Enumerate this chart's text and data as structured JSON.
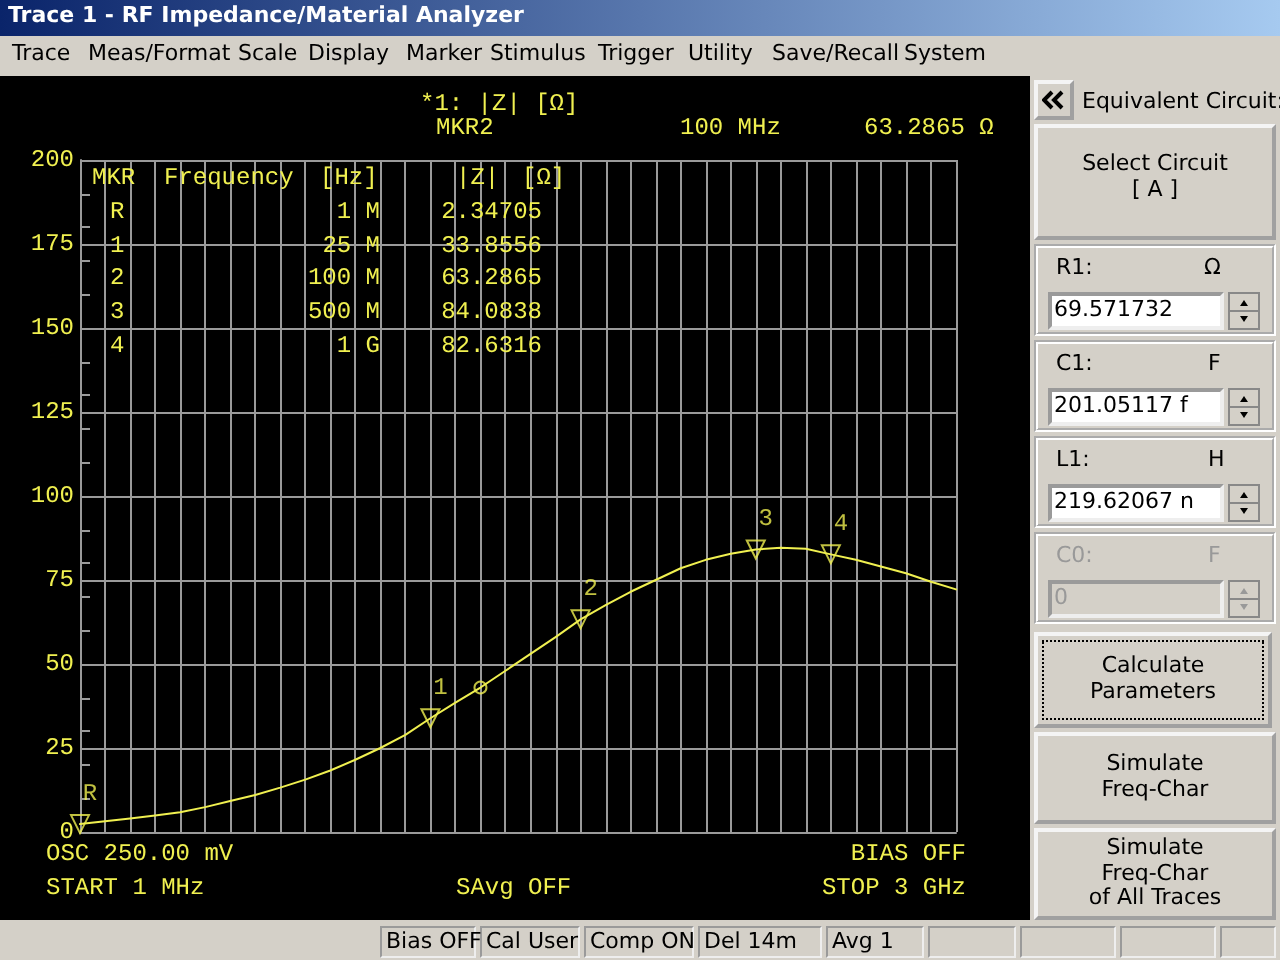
{
  "chart_data": {
    "type": "line",
    "title": "*1: |Z| [Ω]",
    "categories": [
      null,
      null,
      null,
      null,
      null,
      null,
      null,
      null,
      null,
      null,
      null,
      null,
      null,
      null,
      null,
      null,
      null,
      null,
      null,
      null,
      null,
      null,
      null,
      null,
      null,
      null,
      null,
      null,
      null,
      null,
      null,
      null,
      null,
      null,
      null,
      null
    ],
    "ylim": [
      0,
      200
    ],
    "yticks": [
      0,
      25,
      50,
      75,
      100,
      125,
      150,
      175,
      200
    ],
    "grid": true,
    "tick_labels": "y",
    "series": [
      {
        "color": "#f0f050",
        "marker": "none",
        "line_style": "solid",
        "values": [
          2.35,
          3.2,
          4,
          4.9,
          5.9,
          7.4,
          9.2,
          11,
          13.2,
          15.6,
          18.3,
          21.5,
          25,
          28.9,
          33.86,
          38.5,
          43,
          48,
          53,
          58,
          63.29,
          67.5,
          71.5,
          75,
          78.5,
          81,
          82.8,
          84.08,
          84.6,
          84.3,
          82.63,
          81,
          79,
          77,
          74.5,
          72.2
        ]
      },
      {
        "type": "scatter",
        "color": "#f0f050",
        "marker": "triangle",
        "values": [
          2.34705,
          null,
          null,
          null,
          null,
          null,
          null,
          null,
          null,
          null,
          null,
          null,
          null,
          null,
          33.8556,
          null,
          null,
          null,
          null,
          null,
          63.2865,
          null,
          null,
          null,
          null,
          null,
          null,
          84.0838,
          null,
          null,
          82.6316,
          null,
          null,
          null,
          null,
          null
        ]
      },
      {
        "type": "scatter",
        "color": "#f0f050",
        "marker": "circle",
        "values": [
          null,
          null,
          null,
          null,
          null,
          null,
          null,
          null,
          null,
          null,
          null,
          null,
          null,
          null,
          null,
          null,
          43,
          null,
          null,
          null,
          null,
          null,
          null,
          null,
          null,
          null,
          null,
          null,
          null,
          null,
          null,
          null,
          null,
          null,
          null,
          null
        ]
      }
    ],
    "annotations": [
      "Trace 1 - RF Impedance/Material Analyzer",
      "Trace",
      "Meas/Format",
      "Scale",
      "Display",
      "Marker",
      "Stimulus",
      "Trigger",
      "Utility",
      "Save/Recall",
      "System",
      "MKR2",
      "100 MHz",
      "63.2865 Ω",
      "MKR",
      "Frequency",
      "[Hz]",
      "|Z|",
      "[Ω]",
      "R",
      "1 M",
      "2.34705",
      "1",
      "25 M",
      "33.8556",
      "2",
      "100 M",
      "63.2865",
      "3",
      "500 M",
      "84.0838",
      "4",
      "1 G",
      "82.6316",
      "OSC 250.00 mV",
      "BIAS OFF",
      "START 1 MHz",
      "SAvg OFF",
      "STOP 3 GHz",
      "Equivalent Circuit:",
      "Select Circuit\n[ A ]",
      "R1:",
      "Ω",
      "69.571732",
      "C1:",
      "F",
      "201.05117 f",
      "L1:",
      "H",
      "219.62067 n",
      "C0:",
      "F",
      "0",
      "Calculate\nParameters",
      "Simulate\nFreq-Char",
      "Simulate\nFreq-Char\nof All Traces",
      "Bias OFF",
      "Cal User",
      "Comp ON",
      "Del 14m",
      "Avg 1",
      {
        "text": "R",
        "y": 2.34705
      },
      {
        "text": "1",
        "y": 33.8556
      },
      {
        "text": "2",
        "y": 63.2865
      },
      {
        "text": "3",
        "y": 84.0838
      },
      {
        "text": "4",
        "y": 82.6316
      }
    ]
  }
}
